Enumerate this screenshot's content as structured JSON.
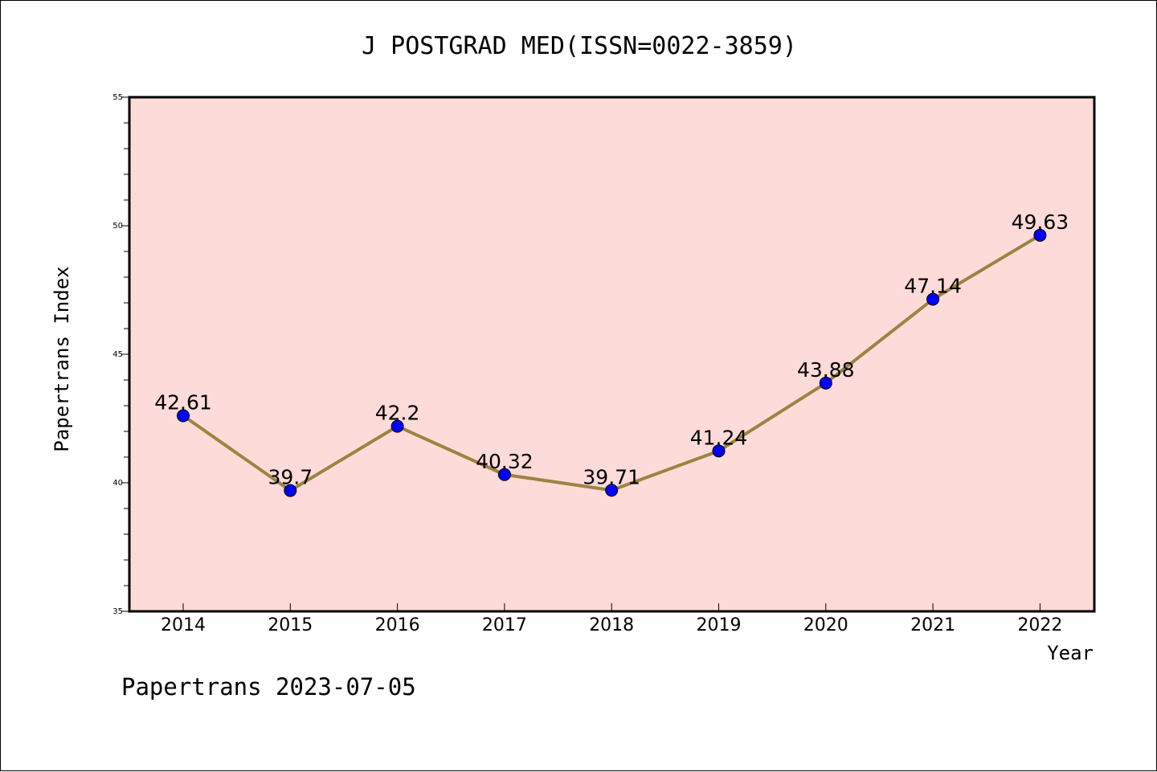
{
  "chart_data": {
    "type": "line",
    "title": "J POSTGRAD MED(ISSN=0022-3859)",
    "xlabel": "Year",
    "ylabel": "Papertrans Index",
    "categories": [
      "2014",
      "2015",
      "2016",
      "2017",
      "2018",
      "2019",
      "2020",
      "2021",
      "2022"
    ],
    "series": [
      {
        "name": "Papertrans Index",
        "values": [
          42.61,
          39.7,
          42.2,
          40.32,
          39.71,
          41.24,
          43.88,
          47.14,
          49.63
        ],
        "labels": [
          "42.61",
          "39.7",
          "42.2",
          "40.32",
          "39.71",
          "41.24",
          "43.88",
          "47.14",
          "49.63"
        ]
      }
    ],
    "ylim": [
      35,
      55
    ],
    "yticks": [
      "35",
      "40",
      "45",
      "50",
      "55"
    ],
    "grid": false,
    "footer": "Papertrans 2023-07-05",
    "colors": {
      "plot_background": "#fddbd8",
      "line": "#9a8440",
      "marker": "#0000ff",
      "axis": "#000000"
    }
  }
}
